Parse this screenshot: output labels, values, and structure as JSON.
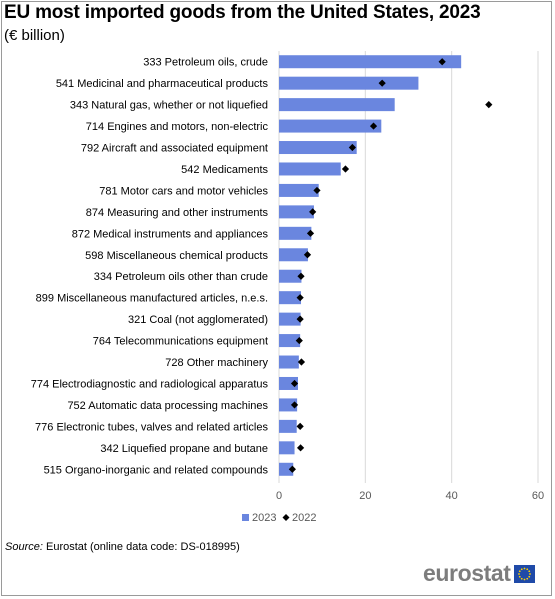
{
  "title": "EU most imported goods from the United States, 2023",
  "subtitle": "(€ billion)",
  "source": {
    "label": "Source:",
    "text": "Eurostat (online data code: DS-018995)"
  },
  "logo": {
    "text": "eurostat"
  },
  "colors": {
    "bar_2023": "#6a86df",
    "marker_2022": "#000000",
    "grid": "#d9d9d9",
    "flag_blue": "#1f4aa8",
    "flag_star": "#ffd200"
  },
  "chart_data": {
    "type": "bar",
    "orientation": "horizontal",
    "categories": [
      "333 Petroleum oils, crude",
      "541 Medicinal and pharmaceutical products",
      "343 Natural gas, whether or not liquefied",
      "714 Engines and motors, non-electric",
      "792 Aircraft and associated equipment",
      "542 Medicaments",
      "781 Motor cars and motor vehicles",
      "874 Measuring and other instruments",
      "872 Medical instruments and appliances",
      "598 Miscellaneous chemical products",
      "334 Petroleum oils other than crude",
      "899 Miscellaneous manufactured articles, n.e.s.",
      "321 Coal (not agglomerated)",
      "764 Telecommunications equipment",
      "728 Other machinery",
      "774 Electrodiagnostic and radiological apparatus",
      "752 Automatic data processing machines",
      "776 Electronic tubes, valves and related articles",
      "342 Liquefied propane and butane",
      "515 Organo-inorganic and related compounds"
    ],
    "series": [
      {
        "name": "2023",
        "style": "bar",
        "values": [
          42.2,
          32.3,
          26.8,
          23.7,
          18.0,
          14.3,
          9.2,
          8.1,
          7.5,
          6.7,
          5.2,
          5.1,
          5.0,
          4.9,
          4.6,
          4.4,
          4.2,
          4.1,
          3.6,
          3.3
        ]
      },
      {
        "name": "2022",
        "style": "marker",
        "values": [
          37.8,
          23.9,
          48.6,
          21.9,
          17.0,
          15.4,
          8.8,
          7.8,
          7.3,
          6.6,
          5.1,
          4.9,
          4.9,
          4.7,
          5.2,
          3.6,
          3.6,
          4.9,
          5.0,
          3.1
        ]
      }
    ],
    "x_ticks": [
      0,
      20,
      40,
      60
    ],
    "xlim": [
      0,
      60
    ],
    "xlabel": "",
    "ylabel": "",
    "grid": "vertical",
    "legend": "bottom"
  }
}
